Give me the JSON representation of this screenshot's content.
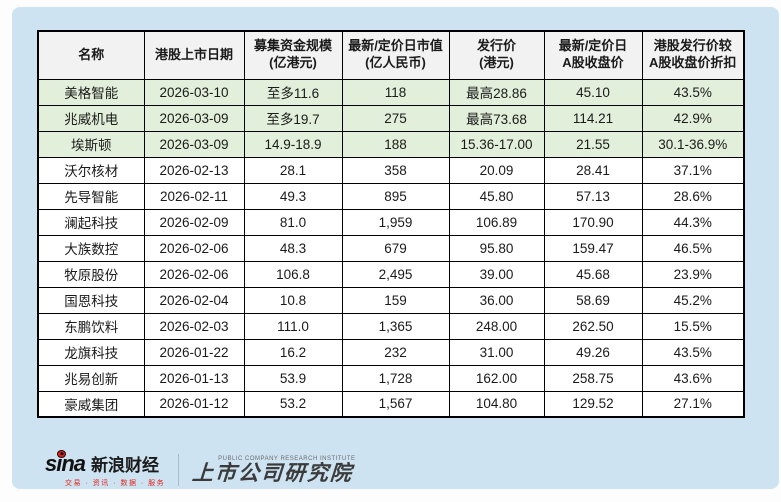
{
  "chart_data": {
    "type": "table",
    "columns": [
      {
        "label": "名称",
        "display": "名称"
      },
      {
        "label": "港股上市日期",
        "display": "港股上市日期"
      },
      {
        "label": "募集资金规模(亿港元)",
        "display": "募集资金规模\n(亿港元)"
      },
      {
        "label": "最新/定价日市值(亿人民币)",
        "display": "最新/定价日市值\n(亿人民币)"
      },
      {
        "label": "发行价(港元)",
        "display": "发行价\n(港元)"
      },
      {
        "label": "最新/定价日A股收盘价",
        "display": "最新/定价日\nA股收盘价"
      },
      {
        "label": "港股发行价较A股收盘价折扣",
        "display": "港股发行价较\nA股收盘价折扣"
      }
    ],
    "rows": [
      {
        "highlight": true,
        "cells": [
          "美格智能",
          "2026-03-10",
          "至多11.6",
          "118",
          "最高28.86",
          "45.10",
          "43.5%"
        ]
      },
      {
        "highlight": true,
        "cells": [
          "兆威机电",
          "2026-03-09",
          "至多19.7",
          "275",
          "最高73.68",
          "114.21",
          "42.9%"
        ]
      },
      {
        "highlight": true,
        "cells": [
          "埃斯顿",
          "2026-03-09",
          "14.9-18.9",
          "188",
          "15.36-17.00",
          "21.55",
          "30.1-36.9%"
        ]
      },
      {
        "highlight": false,
        "cells": [
          "沃尔核材",
          "2026-02-13",
          "28.1",
          "358",
          "20.09",
          "28.41",
          "37.1%"
        ]
      },
      {
        "highlight": false,
        "cells": [
          "先导智能",
          "2026-02-11",
          "49.3",
          "895",
          "45.80",
          "57.13",
          "28.6%"
        ]
      },
      {
        "highlight": false,
        "cells": [
          "澜起科技",
          "2026-02-09",
          "81.0",
          "1,959",
          "106.89",
          "170.90",
          "44.3%"
        ]
      },
      {
        "highlight": false,
        "cells": [
          "大族数控",
          "2026-02-06",
          "48.3",
          "679",
          "95.80",
          "159.47",
          "46.5%"
        ]
      },
      {
        "highlight": false,
        "cells": [
          "牧原股份",
          "2026-02-06",
          "106.8",
          "2,495",
          "39.00",
          "45.68",
          "23.9%"
        ]
      },
      {
        "highlight": false,
        "cells": [
          "国恩科技",
          "2026-02-04",
          "10.8",
          "159",
          "36.00",
          "58.69",
          "45.2%"
        ]
      },
      {
        "highlight": false,
        "cells": [
          "东鹏饮料",
          "2026-02-03",
          "111.0",
          "1,365",
          "248.00",
          "262.50",
          "15.5%"
        ]
      },
      {
        "highlight": false,
        "cells": [
          "龙旗科技",
          "2026-01-22",
          "16.2",
          "232",
          "31.00",
          "49.26",
          "43.5%"
        ]
      },
      {
        "highlight": false,
        "cells": [
          "兆易创新",
          "2026-01-13",
          "53.9",
          "1,728",
          "162.00",
          "258.75",
          "43.6%"
        ]
      },
      {
        "highlight": false,
        "cells": [
          "豪威集团",
          "2026-01-12",
          "53.2",
          "1,567",
          "104.80",
          "129.52",
          "27.1%"
        ]
      }
    ]
  },
  "footer": {
    "sina_wordmark": "sina",
    "sina_brand": "新浪财经",
    "sina_tagline": "交易 · 资讯 · 数据 · 服务",
    "institute_en": "PUBLIC COMPANY RESEARCH INSTITUTE",
    "institute_cn": "上市公司研究院"
  },
  "colors": {
    "card_bg": "#cee3f2",
    "header_bg": "#f2f2f2",
    "highlight_row_bg": "#e2efda",
    "table_border": "#000000",
    "brand_red": "#e1251b"
  }
}
